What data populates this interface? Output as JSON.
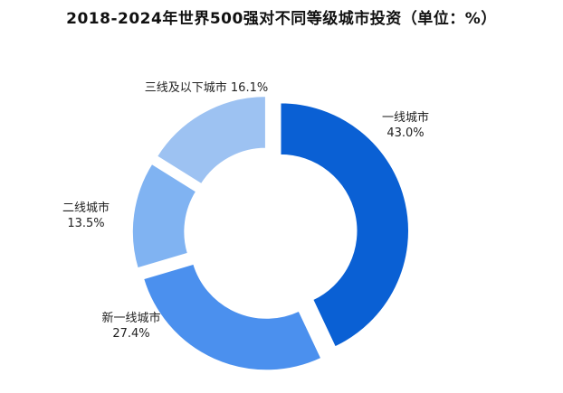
{
  "chart_data": {
    "type": "pie",
    "variant": "exploded-donut",
    "title": "2018-2024年世界500强对不同等级城市投资（单位：%）",
    "slices": [
      {
        "label": "一线城市",
        "value": 43.0,
        "value_label": "43.0%",
        "color": "#0A60D4"
      },
      {
        "label": "新一线城市",
        "value": 27.4,
        "value_label": "27.4%",
        "color": "#4B90EE"
      },
      {
        "label": "二线城市",
        "value": 13.5,
        "value_label": "13.5%",
        "color": "#80B3F2"
      },
      {
        "label": "三线及以下城市",
        "value": 16.1,
        "value_label": "16.1%",
        "color": "#9DC2F2"
      }
    ],
    "legend": "none"
  }
}
